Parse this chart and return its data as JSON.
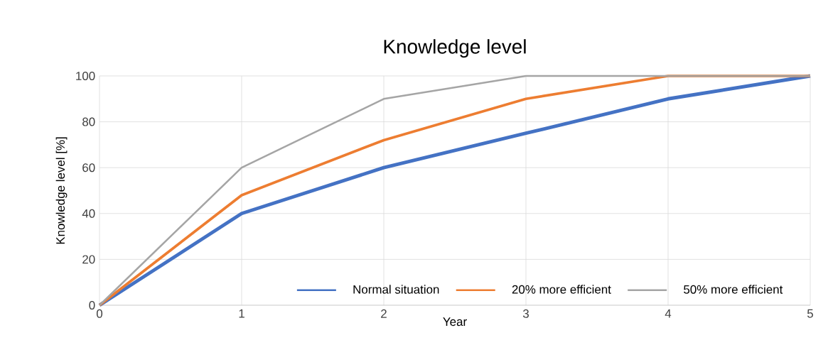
{
  "chart_data": {
    "type": "line",
    "title": "Knowledge level",
    "xlabel": "Year",
    "ylabel": "Knowledge level [%]",
    "x": [
      0,
      1,
      2,
      3,
      4,
      5
    ],
    "series": [
      {
        "name": "Normal situation",
        "color": "#4472c4",
        "values": [
          0,
          40,
          60,
          75,
          90,
          100
        ]
      },
      {
        "name": "20% more efficient",
        "color": "#ed7d31",
        "values": [
          0,
          48,
          72,
          90,
          100,
          100
        ]
      },
      {
        "name": "50% more efficient",
        "color": "#a5a5a5",
        "values": [
          0,
          60,
          90,
          100,
          100,
          100
        ]
      }
    ],
    "xlim": [
      0,
      5
    ],
    "xticks": [
      0,
      1,
      2,
      3,
      4,
      5
    ],
    "ylim": [
      0,
      100
    ],
    "yticks": [
      0,
      20,
      40,
      60,
      80,
      100
    ],
    "grid": true,
    "legend": "bottom",
    "marker": "none",
    "line_style": "solid"
  }
}
